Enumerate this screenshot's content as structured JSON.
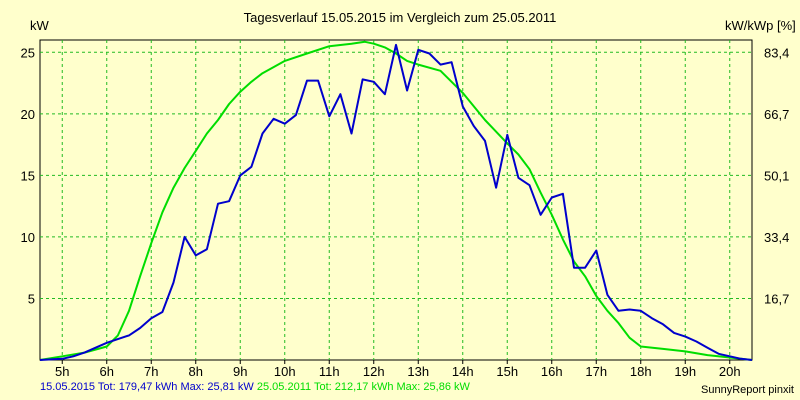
{
  "chart_data": {
    "type": "line",
    "title": "Tagesverlauf 15.05.2015 im Vergleich zum 25.05.2011",
    "ylabel": "kW",
    "y2label": "kW/kWp [%]",
    "xlim": [
      4.5,
      20.5
    ],
    "ylim": [
      0,
      26
    ],
    "x_ticks": [
      5,
      6,
      7,
      8,
      9,
      10,
      11,
      12,
      13,
      14,
      15,
      16,
      17,
      18,
      19,
      20
    ],
    "x_tick_labels": [
      "5h",
      "6h",
      "7h",
      "8h",
      "9h",
      "10h",
      "11h",
      "12h",
      "13h",
      "14h",
      "15h",
      "16h",
      "17h",
      "18h",
      "19h",
      "20h"
    ],
    "y_ticks": [
      5,
      10,
      15,
      20,
      25
    ],
    "y_tick_labels": [
      "5",
      "10",
      "15",
      "20",
      "25"
    ],
    "y2_ticks": [
      5,
      10,
      15,
      20,
      25
    ],
    "y2_tick_labels": [
      "16,7",
      "33,4",
      "50,1",
      "66,7",
      "83,4"
    ],
    "grid": true,
    "series": [
      {
        "name": "15.05.2015",
        "color": "#0000cc",
        "points": [
          [
            4.5,
            0
          ],
          [
            5.0,
            0.1
          ],
          [
            5.25,
            0.3
          ],
          [
            5.5,
            0.6
          ],
          [
            5.75,
            1.0
          ],
          [
            6.0,
            1.4
          ],
          [
            6.25,
            1.7
          ],
          [
            6.5,
            2.0
          ],
          [
            6.75,
            2.6
          ],
          [
            7.0,
            3.4
          ],
          [
            7.25,
            3.9
          ],
          [
            7.5,
            6.3
          ],
          [
            7.75,
            10.0
          ],
          [
            8.0,
            8.5
          ],
          [
            8.25,
            9.0
          ],
          [
            8.5,
            12.7
          ],
          [
            8.75,
            12.9
          ],
          [
            9.0,
            15.0
          ],
          [
            9.25,
            15.7
          ],
          [
            9.5,
            18.4
          ],
          [
            9.75,
            19.6
          ],
          [
            10.0,
            19.2
          ],
          [
            10.25,
            19.9
          ],
          [
            10.5,
            22.7
          ],
          [
            10.75,
            22.7
          ],
          [
            11.0,
            19.8
          ],
          [
            11.25,
            21.6
          ],
          [
            11.5,
            18.4
          ],
          [
            11.75,
            22.8
          ],
          [
            12.0,
            22.6
          ],
          [
            12.25,
            21.6
          ],
          [
            12.5,
            25.6
          ],
          [
            12.75,
            21.9
          ],
          [
            13.0,
            25.2
          ],
          [
            13.25,
            24.9
          ],
          [
            13.5,
            24.0
          ],
          [
            13.75,
            24.2
          ],
          [
            14.0,
            20.6
          ],
          [
            14.25,
            19.0
          ],
          [
            14.5,
            17.8
          ],
          [
            14.75,
            14.0
          ],
          [
            15.0,
            18.3
          ],
          [
            15.25,
            14.8
          ],
          [
            15.5,
            14.2
          ],
          [
            15.75,
            11.8
          ],
          [
            16.0,
            13.2
          ],
          [
            16.25,
            13.5
          ],
          [
            16.5,
            7.5
          ],
          [
            16.75,
            7.5
          ],
          [
            17.0,
            8.9
          ],
          [
            17.25,
            5.3
          ],
          [
            17.5,
            4.0
          ],
          [
            17.75,
            4.1
          ],
          [
            18.0,
            4.0
          ],
          [
            18.25,
            3.4
          ],
          [
            18.5,
            2.9
          ],
          [
            18.75,
            2.2
          ],
          [
            19.0,
            1.9
          ],
          [
            19.25,
            1.5
          ],
          [
            19.5,
            1.0
          ],
          [
            19.75,
            0.5
          ],
          [
            20.0,
            0.3
          ],
          [
            20.25,
            0.1
          ],
          [
            20.5,
            0
          ]
        ]
      },
      {
        "name": "25.05.2011",
        "color": "#00dd00",
        "points": [
          [
            4.5,
            0
          ],
          [
            5.0,
            0.3
          ],
          [
            5.5,
            0.6
          ],
          [
            6.0,
            1.1
          ],
          [
            6.25,
            2.0
          ],
          [
            6.5,
            4.0
          ],
          [
            6.75,
            6.8
          ],
          [
            7.0,
            9.5
          ],
          [
            7.25,
            12.0
          ],
          [
            7.5,
            14.0
          ],
          [
            7.75,
            15.6
          ],
          [
            8.0,
            17.0
          ],
          [
            8.25,
            18.4
          ],
          [
            8.5,
            19.5
          ],
          [
            8.75,
            20.8
          ],
          [
            9.0,
            21.8
          ],
          [
            9.25,
            22.6
          ],
          [
            9.5,
            23.3
          ],
          [
            9.75,
            23.8
          ],
          [
            10.0,
            24.3
          ],
          [
            10.5,
            24.9
          ],
          [
            11.0,
            25.5
          ],
          [
            11.5,
            25.7
          ],
          [
            11.8,
            25.85
          ],
          [
            12.0,
            25.7
          ],
          [
            12.25,
            25.4
          ],
          [
            12.5,
            24.9
          ],
          [
            12.75,
            24.3
          ],
          [
            13.0,
            24.0
          ],
          [
            13.5,
            23.5
          ],
          [
            14.0,
            21.7
          ],
          [
            14.5,
            19.5
          ],
          [
            15.0,
            17.6
          ],
          [
            15.25,
            16.7
          ],
          [
            15.5,
            15.5
          ],
          [
            15.75,
            13.6
          ],
          [
            16.0,
            11.8
          ],
          [
            16.25,
            9.8
          ],
          [
            16.5,
            8.0
          ],
          [
            16.75,
            6.8
          ],
          [
            17.0,
            5.2
          ],
          [
            17.25,
            4.0
          ],
          [
            17.5,
            3.0
          ],
          [
            17.75,
            1.8
          ],
          [
            18.0,
            1.1
          ],
          [
            18.5,
            0.9
          ],
          [
            19.0,
            0.7
          ],
          [
            19.5,
            0.4
          ],
          [
            20.0,
            0.2
          ],
          [
            20.5,
            0
          ]
        ]
      }
    ]
  },
  "footer": {
    "series1": "15.05.2015 Tot: 179,47 kWh Max: 25,81 kW",
    "series2": "25.05.2011 Tot: 212,17 kWh Max: 25,86 kW",
    "series1_color": "#0000cc",
    "series2_color": "#00dd00",
    "credit": "SunnyReport pinxit"
  }
}
